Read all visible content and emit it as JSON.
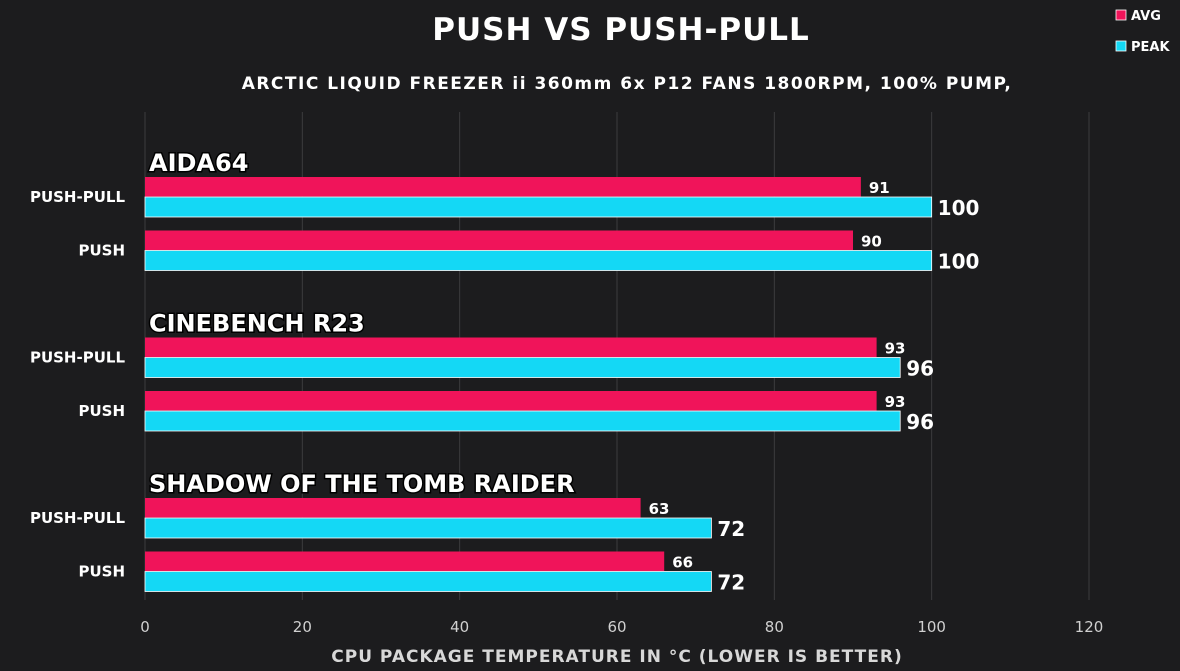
{
  "chart_data": {
    "type": "bar",
    "orientation": "horizontal",
    "title": "PUSH VS PUSH-PULL",
    "subtitle": "ARCTIC LIQUID FREEZER ii 360mm 6x P12 FANS 1800RPM, 100% PUMP,",
    "xlabel": "CPU PACKAGE TEMPERATURE IN °C (LOWER IS BETTER)",
    "ylabel": "",
    "xlim": [
      0,
      120
    ],
    "xticks": [
      0,
      20,
      40,
      60,
      80,
      100,
      120
    ],
    "grid": true,
    "legend_position": "top-right",
    "legend": [
      {
        "name": "AVG",
        "color": "#f0145a"
      },
      {
        "name": "PEAK",
        "color": "#14d8f5"
      }
    ],
    "groups": [
      {
        "name": "AIDA64",
        "rows": [
          {
            "label": "PUSH-PULL",
            "avg": 91,
            "peak": 100
          },
          {
            "label": "PUSH",
            "avg": 90,
            "peak": 100
          }
        ]
      },
      {
        "name": "CINEBENCH R23",
        "rows": [
          {
            "label": "PUSH-PULL",
            "avg": 93,
            "peak": 96
          },
          {
            "label": "PUSH",
            "avg": 93,
            "peak": 96
          }
        ]
      },
      {
        "name": "SHADOW OF THE TOMB RAIDER",
        "rows": [
          {
            "label": "PUSH-PULL",
            "avg": 63,
            "peak": 72
          },
          {
            "label": "PUSH",
            "avg": 66,
            "peak": 72
          }
        ]
      }
    ]
  }
}
